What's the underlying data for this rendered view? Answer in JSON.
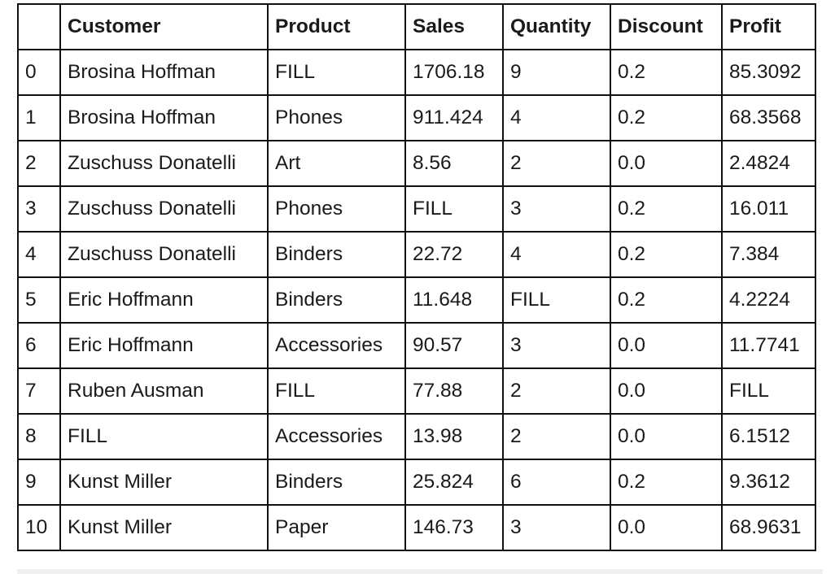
{
  "table": {
    "columns": [
      "",
      "Customer",
      "Product",
      "Sales",
      "Quantity",
      "Discount",
      "Profit"
    ],
    "rows": [
      [
        "0",
        "Brosina Hoffman",
        "FILL",
        "1706.18",
        "9",
        "0.2",
        "85.3092"
      ],
      [
        "1",
        "Brosina Hoffman",
        "Phones",
        "911.424",
        "4",
        "0.2",
        "68.3568"
      ],
      [
        "2",
        "Zuschuss Donatelli",
        "Art",
        "8.56",
        "2",
        "0.0",
        "2.4824"
      ],
      [
        "3",
        "Zuschuss Donatelli",
        "Phones",
        "FILL",
        "3",
        "0.2",
        "16.011"
      ],
      [
        "4",
        "Zuschuss Donatelli",
        "Binders",
        "22.72",
        "4",
        "0.2",
        "7.384"
      ],
      [
        "5",
        "Eric Hoffmann",
        "Binders",
        "11.648",
        "FILL",
        "0.2",
        "4.2224"
      ],
      [
        "6",
        "Eric Hoffmann",
        "Accessories",
        "90.57",
        "3",
        "0.0",
        "11.7741"
      ],
      [
        "7",
        "Ruben Ausman",
        "FILL",
        "77.88",
        "2",
        "0.0",
        "FILL"
      ],
      [
        "8",
        "FILL",
        "Accessories",
        "13.98",
        "2",
        "0.0",
        "6.1512"
      ],
      [
        "9",
        "Kunst Miller",
        "Binders",
        "25.824",
        "6",
        "0.2",
        "9.3612"
      ],
      [
        "10",
        "Kunst Miller",
        "Paper",
        "146.73",
        "3",
        "0.0",
        "68.9631"
      ]
    ]
  }
}
